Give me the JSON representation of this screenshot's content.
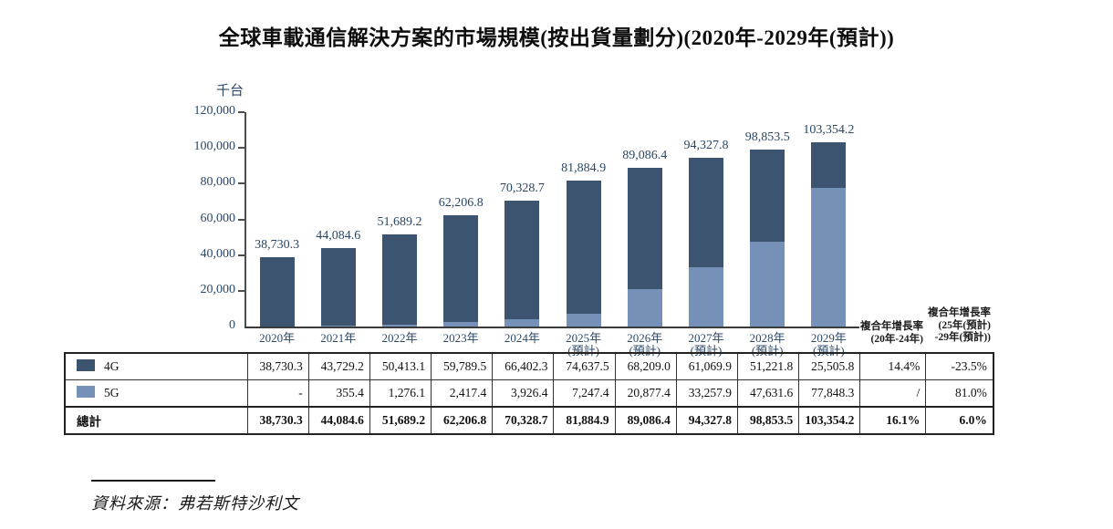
{
  "title": "全球車載通信解決方案的市場規模(按出貨量劃分)(2020年-2029年(預計))",
  "chart_data": {
    "type": "bar",
    "stacked": true,
    "grid": false,
    "unit_label": "千台",
    "ylabel": "千台",
    "ylim": [
      0,
      120000
    ],
    "ytick_values": [
      0,
      20000,
      40000,
      60000,
      80000,
      100000,
      120000
    ],
    "ytick_labels": [
      "0",
      "20,000",
      "40,000",
      "60,000",
      "80,000",
      "100,000",
      "120,000"
    ],
    "categories": [
      {
        "year": "2020年",
        "note": ""
      },
      {
        "year": "2021年",
        "note": ""
      },
      {
        "year": "2022年",
        "note": ""
      },
      {
        "year": "2023年",
        "note": ""
      },
      {
        "year": "2024年",
        "note": ""
      },
      {
        "year": "2025年",
        "note": "(預計)"
      },
      {
        "year": "2026年",
        "note": "(預計)"
      },
      {
        "year": "2027年",
        "note": "(預計)"
      },
      {
        "year": "2028年",
        "note": "(預計)"
      },
      {
        "year": "2029年",
        "note": "(預計)"
      }
    ],
    "series": [
      {
        "name": "4G",
        "color": "#3C5470",
        "values": [
          38730.3,
          43729.2,
          50413.1,
          59789.5,
          66402.3,
          74637.5,
          68209.0,
          61069.9,
          51221.8,
          25505.8
        ]
      },
      {
        "name": "5G",
        "color": "#7591B7",
        "values": [
          0,
          355.4,
          1276.1,
          2417.4,
          3926.4,
          7247.4,
          20877.4,
          33257.9,
          47631.6,
          77848.3
        ]
      }
    ],
    "stack_order_bottom_to_top": [
      "5G",
      "4G"
    ],
    "totals": [
      38730.3,
      44084.6,
      51689.2,
      62206.8,
      70328.7,
      81884.9,
      89086.4,
      94327.8,
      98853.5,
      103354.2
    ],
    "total_labels": [
      "38,730.3",
      "44,084.6",
      "51,689.2",
      "62,206.8",
      "70,328.7",
      "81,884.9",
      "89,086.4",
      "94,327.8",
      "98,853.5",
      "103,354.2"
    ]
  },
  "cagr": {
    "col1_line1": "複合年增長率",
    "col1_line2": "(20年-24年)",
    "col2_line1": "複合年增長率",
    "col2_line2": "(25年(預計)",
    "col2_line3": "-29年(預計))"
  },
  "table": {
    "rows": [
      {
        "legend": "4G",
        "swatch": "#3C5470",
        "bold": false,
        "cells": [
          "38,730.3",
          "43,729.2",
          "50,413.1",
          "59,789.5",
          "66,402.3",
          "74,637.5",
          "68,209.0",
          "61,069.9",
          "51,221.8",
          "25,505.8",
          "14.4%",
          "-23.5%"
        ]
      },
      {
        "legend": "5G",
        "swatch": "#7591B7",
        "bold": false,
        "cells": [
          "-",
          "355.4",
          "1,276.1",
          "2,417.4",
          "3,926.4",
          "7,247.4",
          "20,877.4",
          "33,257.9",
          "47,631.6",
          "77,848.3",
          "/",
          "81.0%"
        ]
      },
      {
        "legend": "總計",
        "swatch": null,
        "bold": true,
        "cells": [
          "38,730.3",
          "44,084.6",
          "51,689.2",
          "62,206.8",
          "70,328.7",
          "81,884.9",
          "89,086.4",
          "94,327.8",
          "98,853.5",
          "103,354.2",
          "16.1%",
          "6.0%"
        ]
      }
    ]
  },
  "source": "資料來源：弗若斯特沙利文"
}
